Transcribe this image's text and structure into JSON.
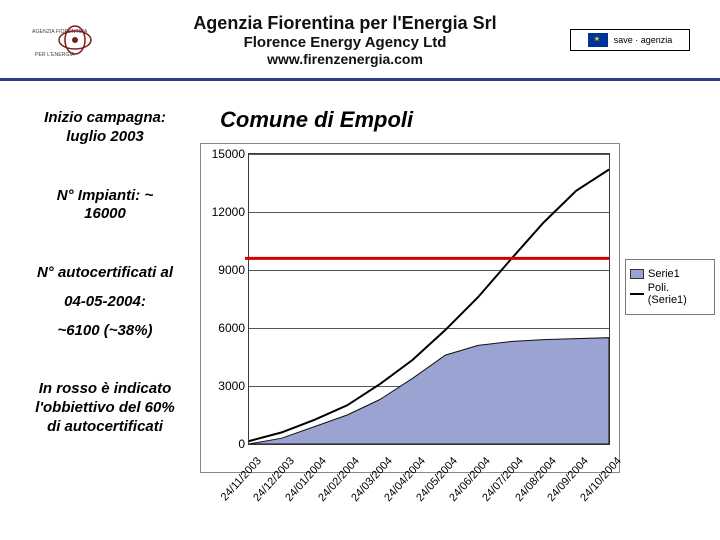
{
  "header": {
    "line1": "Agenzia Fiorentina per l'Energia Srl",
    "line2": "Florence Energy Agency Ltd",
    "line3": "www.firenzenergia.com",
    "badge": "save · agenzia",
    "logo_text_top": "AGENZIA FIORENTINA",
    "logo_text_bottom": "PER L'ENERGIA",
    "hr_color": "#2a3d8f"
  },
  "left": {
    "b1a": "Inizio campagna:",
    "b1b": "luglio 2003",
    "b2a": "N° Impianti: ~",
    "b2b": "16000",
    "b3a": "N° autocertificati al",
    "b3b": "04-05-2004:",
    "b3c": "~6100 (~38%)",
    "b4a": "In rosso è indicato",
    "b4b": "l'obbiettivo del 60%",
    "b4c": "di autocertificati"
  },
  "chart": {
    "title": "Comune di Empoli",
    "type": "area-with-trend",
    "ylim": [
      0,
      15000
    ],
    "ytick_step": 3000,
    "yticks": [
      0,
      3000,
      6000,
      9000,
      12000,
      15000
    ],
    "x_labels": [
      "24/11/2003",
      "24/12/2003",
      "24/01/2004",
      "24/02/2004",
      "24/03/2004",
      "24/04/2004",
      "24/05/2004",
      "24/06/2004",
      "24/07/2004",
      "24/08/2004",
      "24/09/2004",
      "24/10/2004"
    ],
    "series1_values": [
      0,
      300,
      900,
      1500,
      2300,
      3400,
      4600,
      5100,
      5300,
      5400,
      5450,
      5500
    ],
    "series1_fill": "#9aa3d1",
    "series1_stroke": "#111111",
    "trend_values": [
      150,
      600,
      1250,
      2000,
      3100,
      4350,
      5900,
      7600,
      9550,
      11450,
      13100,
      14200
    ],
    "trend_color": "#000000",
    "target_line_y": 9600,
    "target_line_color": "#d40000",
    "target_line_width": 3,
    "grid_color": "#555555",
    "axis_color": "#3a3a3a",
    "background_color": "#ffffff",
    "tick_fontsize": 12,
    "title_fontsize": 22,
    "legend": {
      "s1": "Serie1",
      "s2": "Poli. (Serie1)"
    }
  }
}
